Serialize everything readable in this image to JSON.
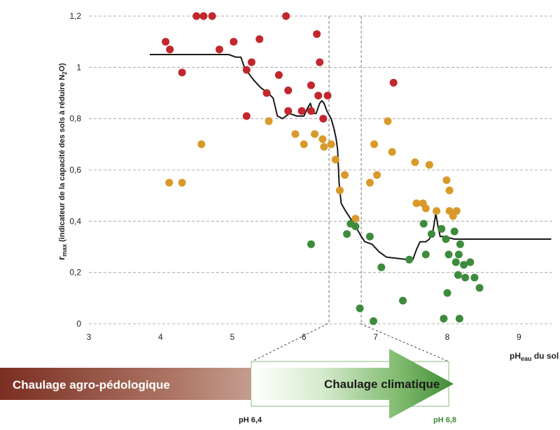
{
  "chart_data": {
    "type": "scatter",
    "xlabel": {
      "main": "pH",
      "sub": "eau",
      "suffix": " du sol"
    },
    "ylabel": {
      "main": "r",
      "sub": "max",
      "text1": " (indicateur de la capacité des sols à réduire N",
      "sub2": "2",
      "text2": "O)"
    },
    "xlim": [
      3,
      9.5
    ],
    "ylim": [
      0,
      1.2
    ],
    "x_ticks": [
      3,
      4,
      5,
      6,
      7,
      8,
      9
    ],
    "x_tick_labels": [
      "3",
      "4",
      "5",
      "6",
      "7",
      "8",
      "9"
    ],
    "y_ticks": [
      0,
      0.2,
      0.4,
      0.6,
      0.8,
      1,
      1.2
    ],
    "y_tick_labels": [
      "0",
      "0,2",
      "0,4",
      "0,6",
      "0,8",
      "1",
      "1,2"
    ],
    "grid": "horizontal dashed",
    "thresholds": [
      6.35,
      6.8
    ],
    "colors": {
      "red": "#c1272d",
      "orange": "#d99a2b",
      "green": "#3d8b3d",
      "curve": "#1a1a1a"
    },
    "series": [
      {
        "color": "red",
        "points": [
          [
            4.07,
            1.1
          ],
          [
            4.13,
            1.07
          ],
          [
            4.3,
            0.98
          ],
          [
            4.5,
            1.2
          ],
          [
            4.6,
            1.2
          ],
          [
            4.72,
            1.2
          ],
          [
            4.82,
            1.07
          ],
          [
            5.02,
            1.1
          ],
          [
            5.2,
            0.99
          ],
          [
            5.27,
            1.02
          ],
          [
            5.38,
            1.11
          ],
          [
            5.48,
            0.9
          ],
          [
            5.65,
            0.97
          ],
          [
            5.75,
            1.2
          ],
          [
            5.78,
            0.91
          ],
          [
            5.2,
            0.81
          ],
          [
            5.78,
            0.83
          ],
          [
            5.97,
            0.83
          ],
          [
            6.1,
            0.93
          ],
          [
            6.1,
            0.83
          ],
          [
            6.18,
            1.13
          ],
          [
            6.2,
            0.89
          ],
          [
            6.22,
            1.02
          ],
          [
            6.27,
            0.8
          ],
          [
            6.33,
            0.89
          ],
          [
            7.25,
            0.94
          ]
        ]
      },
      {
        "color": "orange",
        "points": [
          [
            4.12,
            0.55
          ],
          [
            4.3,
            0.55
          ],
          [
            4.57,
            0.7
          ],
          [
            5.51,
            0.79
          ],
          [
            5.88,
            0.74
          ],
          [
            6.0,
            0.7
          ],
          [
            6.15,
            0.74
          ],
          [
            6.26,
            0.72
          ],
          [
            6.28,
            0.69
          ],
          [
            6.38,
            0.7
          ],
          [
            6.44,
            0.64
          ],
          [
            6.5,
            0.52
          ],
          [
            6.57,
            0.58
          ],
          [
            6.72,
            0.41
          ],
          [
            6.92,
            0.55
          ],
          [
            6.98,
            0.7
          ],
          [
            7.02,
            0.58
          ],
          [
            7.17,
            0.79
          ],
          [
            7.23,
            0.67
          ],
          [
            7.55,
            0.63
          ],
          [
            7.57,
            0.47
          ],
          [
            7.66,
            0.47
          ],
          [
            7.7,
            0.45
          ],
          [
            7.75,
            0.62
          ],
          [
            7.85,
            0.44
          ],
          [
            7.99,
            0.56
          ],
          [
            8.03,
            0.52
          ],
          [
            8.03,
            0.44
          ],
          [
            8.08,
            0.42
          ],
          [
            8.13,
            0.44
          ]
        ]
      },
      {
        "color": "green",
        "points": [
          [
            6.1,
            0.31
          ],
          [
            6.6,
            0.35
          ],
          [
            6.65,
            0.39
          ],
          [
            6.72,
            0.38
          ],
          [
            6.78,
            0.06
          ],
          [
            6.92,
            0.34
          ],
          [
            6.97,
            0.01
          ],
          [
            7.08,
            0.22
          ],
          [
            7.38,
            0.09
          ],
          [
            7.47,
            0.25
          ],
          [
            7.67,
            0.39
          ],
          [
            7.7,
            0.27
          ],
          [
            7.78,
            0.35
          ],
          [
            7.92,
            0.37
          ],
          [
            7.95,
            0.02
          ],
          [
            7.98,
            0.33
          ],
          [
            8.0,
            0.12
          ],
          [
            8.02,
            0.27
          ],
          [
            8.1,
            0.36
          ],
          [
            8.12,
            0.24
          ],
          [
            8.15,
            0.19
          ],
          [
            8.18,
            0.31
          ],
          [
            8.23,
            0.23
          ],
          [
            8.25,
            0.18
          ],
          [
            8.32,
            0.24
          ],
          [
            8.38,
            0.18
          ],
          [
            8.45,
            0.14
          ],
          [
            8.17,
            0.02
          ],
          [
            8.16,
            0.27
          ]
        ]
      }
    ],
    "curve": [
      [
        3.85,
        1.05
      ],
      [
        4.5,
        1.05
      ],
      [
        4.95,
        1.05
      ],
      [
        5.05,
        1.04
      ],
      [
        5.12,
        1.04
      ],
      [
        5.17,
        1.0
      ],
      [
        5.22,
        0.98
      ],
      [
        5.3,
        0.95
      ],
      [
        5.4,
        0.92
      ],
      [
        5.5,
        0.9
      ],
      [
        5.57,
        0.88
      ],
      [
        5.63,
        0.81
      ],
      [
        5.7,
        0.8
      ],
      [
        5.8,
        0.82
      ],
      [
        5.9,
        0.81
      ],
      [
        6.0,
        0.81
      ],
      [
        6.05,
        0.84
      ],
      [
        6.09,
        0.86
      ],
      [
        6.13,
        0.82
      ],
      [
        6.17,
        0.82
      ],
      [
        6.22,
        0.86
      ],
      [
        6.25,
        0.87
      ],
      [
        6.28,
        0.86
      ],
      [
        6.32,
        0.83
      ],
      [
        6.38,
        0.8
      ],
      [
        6.42,
        0.76
      ],
      [
        6.45,
        0.72
      ],
      [
        6.47,
        0.68
      ],
      [
        6.49,
        0.55
      ],
      [
        6.52,
        0.47
      ],
      [
        6.58,
        0.44
      ],
      [
        6.65,
        0.41
      ],
      [
        6.72,
        0.38
      ],
      [
        6.8,
        0.34
      ],
      [
        6.85,
        0.32
      ],
      [
        6.95,
        0.31
      ],
      [
        7.05,
        0.28
      ],
      [
        7.15,
        0.26
      ],
      [
        7.3,
        0.255
      ],
      [
        7.45,
        0.25
      ],
      [
        7.52,
        0.25
      ],
      [
        7.57,
        0.29
      ],
      [
        7.62,
        0.32
      ],
      [
        7.7,
        0.32
      ],
      [
        7.75,
        0.33
      ],
      [
        7.8,
        0.36
      ],
      [
        7.84,
        0.43
      ],
      [
        7.87,
        0.38
      ],
      [
        7.9,
        0.34
      ],
      [
        7.95,
        0.34
      ],
      [
        8.1,
        0.33
      ],
      [
        8.5,
        0.33
      ],
      [
        9.0,
        0.33
      ],
      [
        9.45,
        0.33
      ]
    ]
  },
  "band": {
    "left_label": "Chaulage agro-pédologique",
    "right_label": "Chaulage climatique",
    "ph_left": "pH 6,4",
    "ph_right": "pH 6,8",
    "colors": {
      "brown": "#7a2e22",
      "green_light": "#b5d9a6",
      "green_dark": "#3f8a35",
      "box": "#8cba7c"
    }
  }
}
